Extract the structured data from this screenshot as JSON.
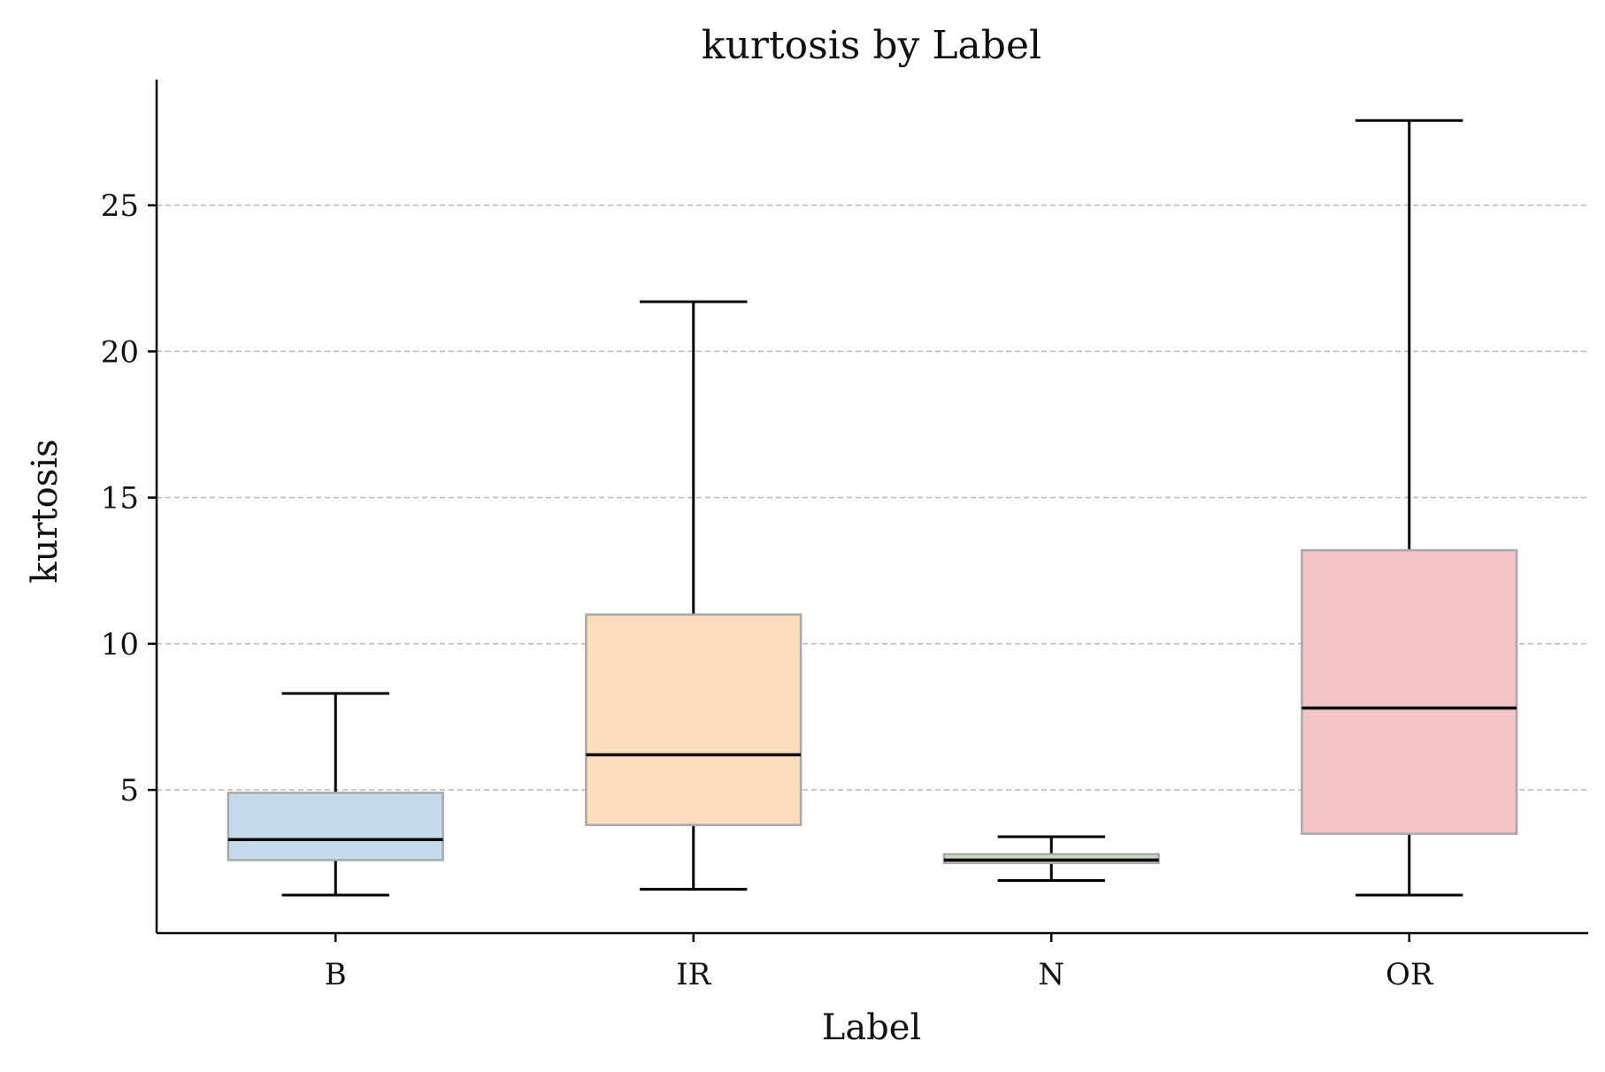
{
  "chart_data": {
    "type": "box",
    "title": "kurtosis by Label",
    "xlabel": "Label",
    "ylabel": "kurtosis",
    "categories": [
      "B",
      "IR",
      "N",
      "OR"
    ],
    "yticks": [
      5,
      10,
      15,
      20,
      25
    ],
    "ylim": [
      0.1,
      29.3
    ],
    "grid": "y-dashed",
    "boxes": [
      {
        "label": "B",
        "whisker_low": 1.4,
        "q1": 2.6,
        "median": 3.3,
        "q3": 4.9,
        "whisker_high": 8.3,
        "color": "#c5dbec"
      },
      {
        "label": "IR",
        "whisker_low": 1.6,
        "q1": 3.8,
        "median": 6.2,
        "q3": 11.0,
        "whisker_high": 21.7,
        "color": "#fddcbe"
      },
      {
        "label": "N",
        "whisker_low": 1.9,
        "q1": 2.5,
        "median": 2.6,
        "q3": 2.8,
        "whisker_high": 3.4,
        "color": "#c8dcc4"
      },
      {
        "label": "OR",
        "whisker_low": 1.4,
        "q1": 3.5,
        "median": 7.8,
        "q3": 13.2,
        "whisker_high": 27.9,
        "color": "#f3c5c6"
      }
    ]
  }
}
